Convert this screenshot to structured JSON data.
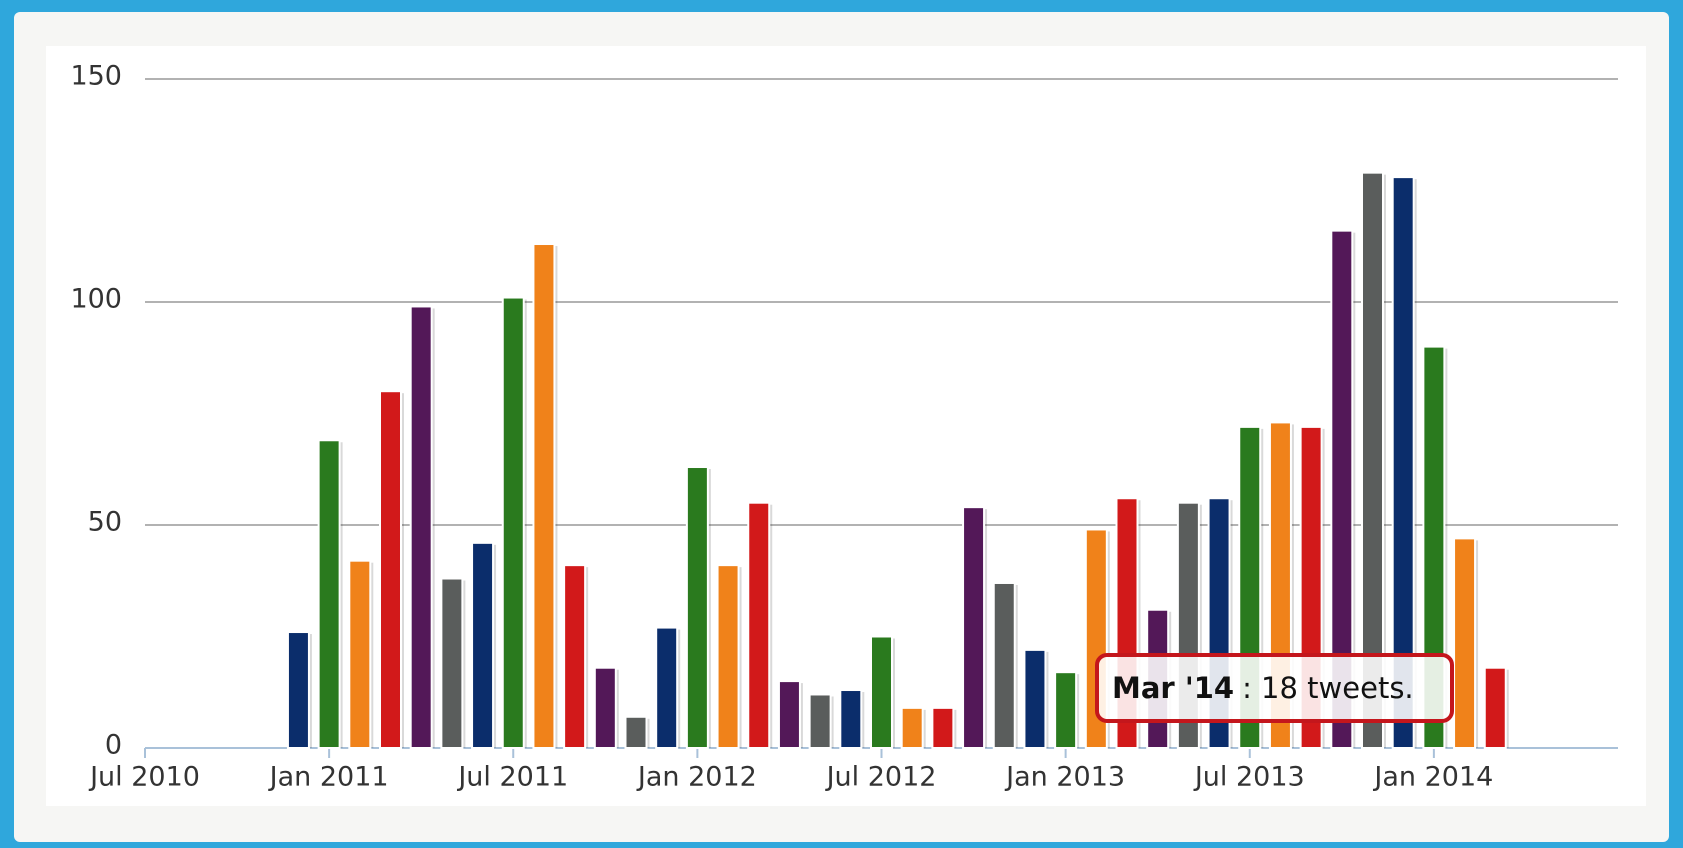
{
  "chart_data": {
    "type": "bar",
    "x": [
      "2010-12",
      "2011-01",
      "2011-02",
      "2011-03",
      "2011-04",
      "2011-05",
      "2011-06",
      "2011-07",
      "2011-08",
      "2011-09",
      "2011-10",
      "2011-11",
      "2011-12",
      "2012-01",
      "2012-02",
      "2012-03",
      "2012-04",
      "2012-05",
      "2012-06",
      "2012-07",
      "2012-08",
      "2012-09",
      "2012-10",
      "2012-11",
      "2012-12",
      "2013-01",
      "2013-02",
      "2013-03",
      "2013-04",
      "2013-05",
      "2013-06",
      "2013-07",
      "2013-08",
      "2013-09",
      "2013-10",
      "2013-11",
      "2013-12",
      "2014-01",
      "2014-02",
      "2014-03"
    ],
    "values": [
      26,
      69,
      42,
      80,
      99,
      38,
      46,
      101,
      113,
      41,
      18,
      7,
      27,
      63,
      41,
      55,
      15,
      12,
      13,
      25,
      9,
      9,
      54,
      37,
      22,
      17,
      49,
      56,
      31,
      55,
      56,
      72,
      73,
      72,
      116,
      129,
      128,
      90,
      47,
      18
    ],
    "colors": [
      "#0b2d6b",
      "#2a7a1e",
      "#f0821a",
      "#d2191a",
      "#531858",
      "#5a5d5c"
    ],
    "xlim": [
      "2010-07",
      "2014-07"
    ],
    "xticks": [
      {
        "value": "2010-07",
        "label": "Jul 2010"
      },
      {
        "value": "2011-01",
        "label": "Jan 2011"
      },
      {
        "value": "2011-07",
        "label": "Jul 2011"
      },
      {
        "value": "2012-01",
        "label": "Jan 2012"
      },
      {
        "value": "2012-07",
        "label": "Jul 2012"
      },
      {
        "value": "2013-01",
        "label": "Jan 2013"
      },
      {
        "value": "2013-07",
        "label": "Jul 2013"
      },
      {
        "value": "2014-01",
        "label": "Jan 2014"
      }
    ],
    "ylim": [
      0,
      150
    ],
    "yticks": [
      0,
      50,
      100,
      150
    ],
    "grid": true,
    "tooltip": {
      "label": "Mar '14",
      "text": ": 18 tweets."
    }
  }
}
